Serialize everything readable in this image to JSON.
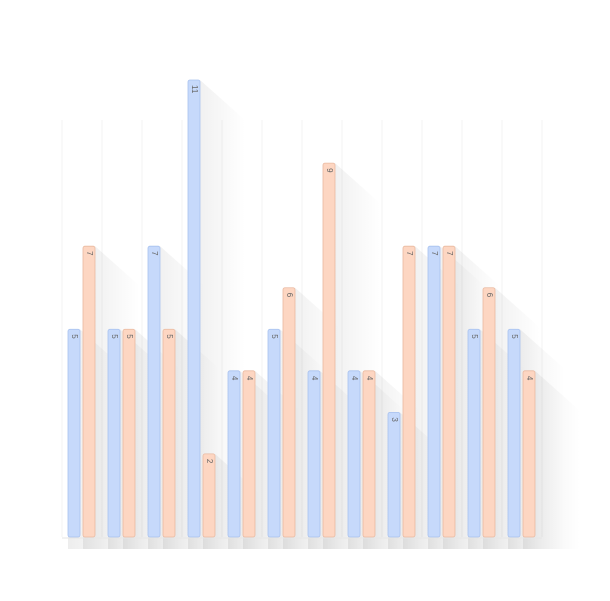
{
  "chart_data": {
    "type": "bar",
    "series": [
      {
        "color": "#c6d9fb",
        "values": [
          5,
          5,
          7,
          11,
          4,
          5,
          4,
          4,
          3,
          7,
          5,
          5
        ]
      },
      {
        "color": "#fdd6c2",
        "values": [
          7,
          5,
          5,
          2,
          4,
          6,
          9,
          4,
          7,
          7,
          6,
          4
        ]
      }
    ],
    "ylim": [
      0,
      11
    ]
  }
}
